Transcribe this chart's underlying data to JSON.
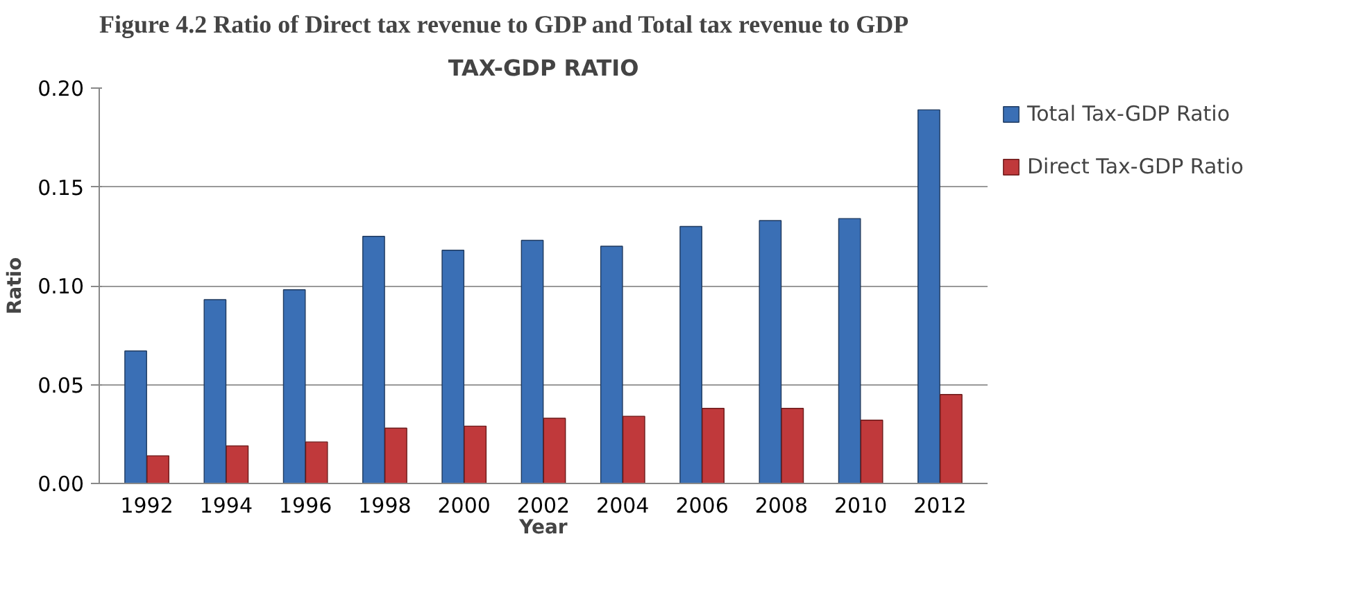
{
  "chart_data": {
    "type": "bar",
    "title": "TAX-GDP RATIO",
    "xlabel": "Year",
    "ylabel": "Ratio",
    "annotations": [
      "Figure 4.2 Ratio of Direct tax revenue to GDP and Total tax revenue to GDP"
    ],
    "categories": [
      "1992",
      "1994",
      "1996",
      "1998",
      "2000",
      "2002",
      "2004",
      "2006",
      "2008",
      "2010",
      "2012"
    ],
    "series": [
      {
        "name": "Total Tax-GDP Ratio",
        "color": "#3a6fb5",
        "values": [
          0.067,
          0.093,
          0.098,
          0.125,
          0.118,
          0.123,
          0.12,
          0.13,
          0.133,
          0.134,
          0.189
        ]
      },
      {
        "name": "Direct Tax-GDP Ratio",
        "color": "#c0393b",
        "values": [
          0.014,
          0.019,
          0.021,
          0.028,
          0.029,
          0.033,
          0.034,
          0.038,
          0.038,
          0.032,
          0.045
        ]
      }
    ],
    "ylim": [
      0,
      0.2
    ],
    "yticks": [
      {
        "value": 0,
        "label": "0.00"
      },
      {
        "value": 0.05,
        "label": "0.05"
      },
      {
        "value": 0.1,
        "label": "0.10"
      },
      {
        "value": 0.15,
        "label": "0.15"
      },
      {
        "value": 0.2,
        "label": "0.20"
      }
    ],
    "grid": "y",
    "legend": "right"
  }
}
